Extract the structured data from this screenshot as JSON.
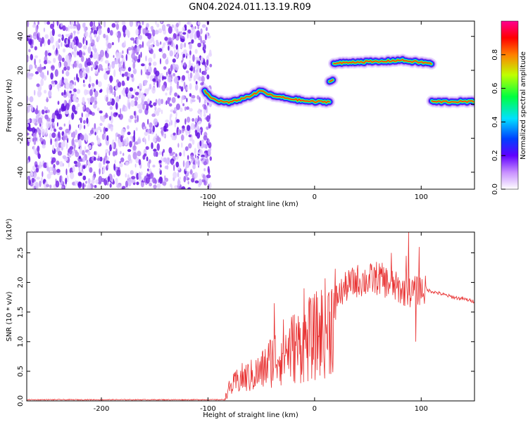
{
  "title": "GN04.2024.011.13.19.R09",
  "chart_data": [
    {
      "type": "heatmap",
      "xlabel": "Height of straight line (km)",
      "ylabel": "Frequency (Hz)",
      "xlim": [
        -270,
        150
      ],
      "ylim": [
        -50,
        49
      ],
      "xticks": [
        -200,
        -100,
        0,
        100
      ],
      "yticks": [
        -40,
        -20,
        0,
        20,
        40
      ],
      "colorbar": {
        "label": "Normalized spectral amplitude",
        "range": [
          0,
          1
        ],
        "ticks": [
          "0.0",
          "0.2",
          "0.4",
          "0.6",
          "0.8"
        ]
      },
      "noise_region": {
        "x_start": -270,
        "x_end": -100
      },
      "segments": [
        {
          "x_start": -103,
          "x_end": 15,
          "freq": [
            [
              -103,
              8
            ],
            [
              -98,
              4
            ],
            [
              -90,
              2
            ],
            [
              -80,
              1
            ],
            [
              -70,
              3
            ],
            [
              -60,
              5
            ],
            [
              -50,
              8
            ],
            [
              -40,
              5
            ],
            [
              -30,
              4
            ],
            [
              -20,
              3
            ],
            [
              -10,
              2
            ],
            [
              0,
              1.5
            ],
            [
              15,
              1.5
            ]
          ]
        },
        {
          "x_start": 14,
          "x_end": 18,
          "freq": [
            [
              14,
              14
            ],
            [
              18,
              14
            ]
          ]
        },
        {
          "x_start": 18,
          "x_end": 110,
          "freq": [
            [
              18,
              24
            ],
            [
              40,
              25
            ],
            [
              60,
              25
            ],
            [
              80,
              26
            ],
            [
              95,
              25
            ],
            [
              110,
              24
            ]
          ]
        },
        {
          "x_start": 110,
          "x_end": 150,
          "freq": [
            [
              110,
              1.5
            ],
            [
              150,
              1.5
            ]
          ]
        }
      ]
    },
    {
      "type": "line",
      "xlabel": "Height of straight line (km)",
      "ylabel": "SNR (10 * v/v)",
      "yscale_label": "(x10⁴)",
      "xlim": [
        -270,
        150
      ],
      "ylim": [
        0,
        2.85
      ],
      "xticks": [
        -200,
        -100,
        0,
        100
      ],
      "yticks": [
        "0.0",
        "0.5",
        "1.0",
        "1.5",
        "2.0",
        "2.5"
      ],
      "envelope": [
        [
          -270,
          0.02
        ],
        [
          -85,
          0.02
        ],
        [
          -80,
          0.25
        ],
        [
          -70,
          0.45
        ],
        [
          -60,
          0.5
        ],
        [
          -50,
          0.6
        ],
        [
          -40,
          0.85
        ],
        [
          -30,
          1.0
        ],
        [
          -20,
          1.1
        ],
        [
          -10,
          1.15
        ],
        [
          0,
          1.3
        ],
        [
          10,
          1.5
        ],
        [
          20,
          1.75
        ],
        [
          30,
          1.95
        ],
        [
          40,
          2.05
        ],
        [
          50,
          2.05
        ],
        [
          60,
          2.1
        ],
        [
          70,
          2.0
        ],
        [
          80,
          1.9
        ],
        [
          90,
          1.85
        ],
        [
          100,
          1.9
        ],
        [
          110,
          1.85
        ],
        [
          120,
          1.8
        ],
        [
          130,
          1.75
        ],
        [
          140,
          1.72
        ],
        [
          150,
          1.68
        ]
      ],
      "peaks": [
        [
          88,
          2.85
        ],
        [
          86,
          2.45
        ],
        [
          98,
          2.6
        ],
        [
          72,
          2.5
        ],
        [
          95,
          1.0
        ],
        [
          -5,
          1.75
        ],
        [
          -10,
          1.9
        ],
        [
          -38,
          1.65
        ]
      ]
    }
  ]
}
